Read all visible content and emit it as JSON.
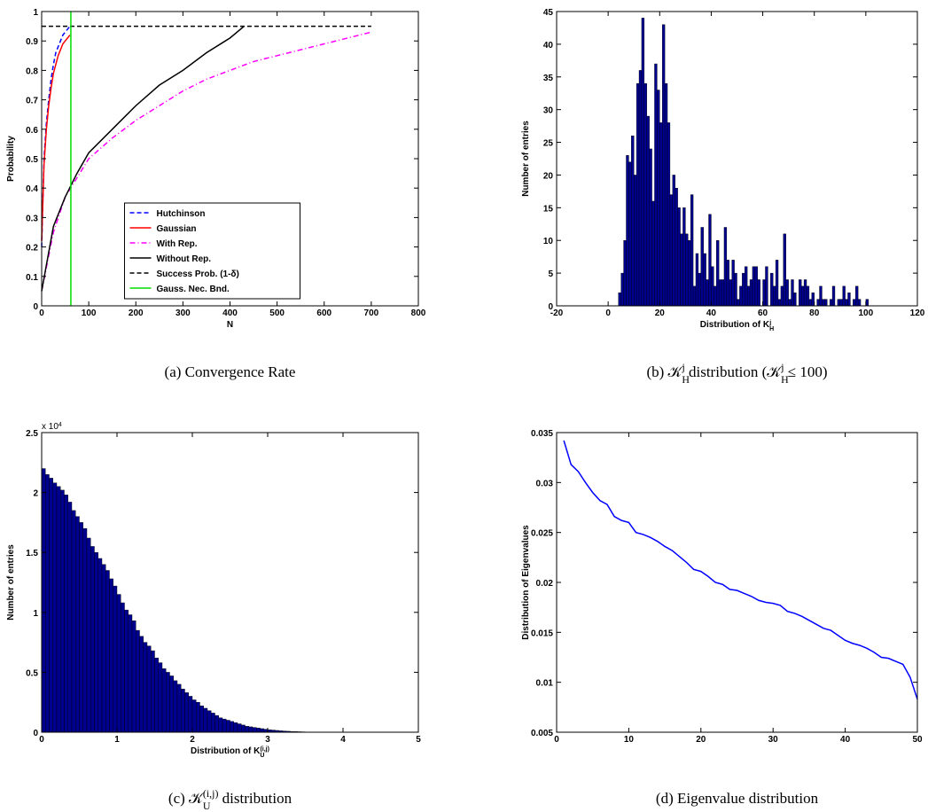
{
  "chart_data": [
    {
      "type": "line",
      "ylabel": [
        {
          "text": "Probability"
        }
      ],
      "xlabel": [
        {
          "text": "N"
        }
      ],
      "caption": [
        {
          "text": "(a)  Convergence Rate"
        }
      ],
      "xlim": [
        0,
        800
      ],
      "xticks": [
        0,
        100,
        200,
        300,
        400,
        500,
        600,
        700,
        800
      ],
      "ylim": [
        0,
        1
      ],
      "yticks": [
        0,
        0.1,
        0.2,
        0.3,
        0.4,
        0.5,
        0.6,
        0.7,
        0.8,
        0.9,
        1
      ],
      "legend": "lower center",
      "series": [
        {
          "name": "Hutchinson",
          "color": "#0000ff",
          "linestyle": "--",
          "x": [
            0,
            5,
            10,
            15,
            20,
            25,
            30,
            35,
            40,
            45,
            50,
            55,
            60
          ],
          "values": [
            0.2,
            0.5,
            0.62,
            0.7,
            0.77,
            0.82,
            0.86,
            0.88,
            0.9,
            0.92,
            0.93,
            0.94,
            0.95
          ]
        },
        {
          "name": "Gaussian",
          "color": "#ff0000",
          "linestyle": "-",
          "x": [
            0,
            5,
            10,
            15,
            20,
            25,
            30,
            35,
            40,
            45,
            50,
            55,
            60
          ],
          "values": [
            0.22,
            0.48,
            0.6,
            0.68,
            0.74,
            0.79,
            0.82,
            0.85,
            0.87,
            0.89,
            0.9,
            0.91,
            0.92
          ]
        },
        {
          "name": "With Rep.",
          "color": "#ff00ff",
          "linestyle": "-.",
          "x": [
            0,
            25,
            50,
            100,
            150,
            200,
            250,
            300,
            350,
            400,
            450,
            500,
            550,
            600,
            650,
            700
          ],
          "values": [
            0.05,
            0.25,
            0.37,
            0.5,
            0.57,
            0.63,
            0.68,
            0.73,
            0.77,
            0.8,
            0.83,
            0.85,
            0.87,
            0.89,
            0.91,
            0.93
          ]
        },
        {
          "name": "Without Rep.",
          "color": "#000000",
          "linestyle": "-",
          "x": [
            0,
            25,
            50,
            75,
            100,
            150,
            200,
            250,
            300,
            350,
            400,
            430
          ],
          "values": [
            0.05,
            0.27,
            0.37,
            0.45,
            0.52,
            0.6,
            0.68,
            0.75,
            0.8,
            0.86,
            0.91,
            0.95
          ]
        },
        {
          "name": "Success Prob. (1-δ)",
          "color": "#000000",
          "linestyle": "--",
          "x": [
            0,
            700
          ],
          "values": [
            0.95,
            0.95
          ]
        },
        {
          "name": "Gauss. Nec. Bnd.",
          "color": "#00dd00",
          "linestyle": "-",
          "x": [
            62,
            62
          ],
          "values": [
            0,
            1
          ]
        }
      ]
    },
    {
      "type": "histogram",
      "ylabel": [
        {
          "text": "Number of entries"
        }
      ],
      "xlabel": [
        {
          "text": "Distribution of K"
        },
        {
          "sub": "H",
          "sup": "j"
        }
      ],
      "caption": [
        {
          "text": "(b)  𝒦"
        },
        {
          "sub": "H",
          "sup": "j"
        },
        {
          "text": " distribution (𝒦"
        },
        {
          "sub": "H",
          "sup": "j"
        },
        {
          "text": " ≤ 100)"
        }
      ],
      "xlim": [
        -20,
        120
      ],
      "xticks": [
        -20,
        0,
        20,
        40,
        60,
        80,
        100,
        120
      ],
      "ylim": [
        0,
        45
      ],
      "yticks": [
        0,
        5,
        10,
        15,
        20,
        25,
        30,
        35,
        40,
        45
      ],
      "color": "#00008f",
      "bins": [
        4,
        5,
        6,
        7,
        8,
        9,
        10,
        11,
        12,
        13,
        14,
        15,
        16,
        17,
        18,
        19,
        20,
        21,
        22,
        23,
        24,
        25,
        26,
        27,
        28,
        29,
        30,
        31,
        32,
        33,
        34,
        35,
        36,
        37,
        38,
        39,
        40,
        41,
        42,
        43,
        44,
        45,
        46,
        47,
        48,
        49,
        50,
        51,
        52,
        53,
        54,
        55,
        56,
        57,
        58,
        59,
        60,
        61,
        62,
        63,
        64,
        65,
        66,
        67,
        68,
        69,
        70,
        71,
        72,
        73,
        74,
        75,
        76,
        77,
        78,
        79,
        80,
        81,
        82,
        83,
        84,
        85,
        86,
        87,
        88,
        89,
        90,
        91,
        92,
        93,
        94,
        95,
        96,
        97,
        98,
        99,
        100,
        101
      ],
      "values": [
        2,
        5,
        10,
        23,
        22,
        26,
        20,
        34,
        36,
        44,
        34,
        29,
        24,
        16,
        37,
        33,
        28,
        43,
        34,
        28,
        17,
        20,
        18,
        15,
        11,
        15,
        11,
        10,
        17,
        3,
        8,
        5,
        12,
        8,
        4,
        14,
        6,
        3,
        10,
        4,
        4,
        12,
        7,
        4,
        7,
        5,
        1,
        3,
        5,
        6,
        3,
        4,
        6,
        6,
        4,
        0,
        4,
        6,
        0,
        5,
        3,
        7,
        1,
        3,
        11,
        4,
        1,
        4,
        2,
        0,
        4,
        3,
        4,
        3,
        1,
        2,
        0,
        1,
        3,
        1,
        1,
        0,
        1,
        3,
        0,
        1,
        1,
        3,
        1,
        2,
        0,
        1,
        3,
        1,
        0,
        0,
        1
      ]
    },
    {
      "type": "histogram",
      "ylabel": [
        {
          "text": "Number of entries"
        }
      ],
      "xlabel": [
        {
          "text": "Distribution of K"
        },
        {
          "sub": "U",
          "sup": "(i,j)"
        }
      ],
      "annotation": [
        {
          "text": "x 10"
        },
        {
          "sup": "4"
        }
      ],
      "caption": [
        {
          "text": "(c)  𝒦"
        },
        {
          "sub": "U",
          "sup": "(i,j)"
        },
        {
          "text": " distribution"
        }
      ],
      "xlim": [
        0,
        5
      ],
      "xticks": [
        0,
        1,
        2,
        3,
        4,
        5
      ],
      "ylim": [
        0,
        2.5
      ],
      "yticks": [
        0,
        0.5,
        1,
        1.5,
        2,
        2.5
      ],
      "color": "#00008f",
      "bins": [
        0,
        0.05,
        0.1,
        0.15,
        0.2,
        0.25,
        0.3,
        0.35,
        0.4,
        0.45,
        0.5,
        0.55,
        0.6,
        0.65,
        0.7,
        0.75,
        0.8,
        0.85,
        0.9,
        0.95,
        1,
        1.05,
        1.1,
        1.15,
        1.2,
        1.25,
        1.3,
        1.35,
        1.4,
        1.45,
        1.5,
        1.55,
        1.6,
        1.65,
        1.7,
        1.75,
        1.8,
        1.85,
        1.9,
        1.95,
        2,
        2.05,
        2.1,
        2.15,
        2.2,
        2.25,
        2.3,
        2.35,
        2.4,
        2.45,
        2.5,
        2.55,
        2.6,
        2.65,
        2.7,
        2.75,
        2.8,
        2.85,
        2.9,
        2.95,
        3,
        3.05,
        3.1,
        3.15,
        3.2,
        3.25,
        3.3,
        3.35,
        3.4,
        3.45,
        3.5,
        3.55,
        3.6,
        3.65,
        3.7,
        3.75,
        3.8,
        3.85,
        3.9,
        3.95,
        4
      ],
      "values": [
        2.2,
        2.15,
        2.12,
        2.08,
        2.05,
        2.02,
        1.98,
        1.92,
        1.85,
        1.8,
        1.75,
        1.7,
        1.62,
        1.55,
        1.5,
        1.45,
        1.4,
        1.35,
        1.28,
        1.22,
        1.15,
        1.08,
        1.02,
        0.98,
        0.93,
        0.85,
        0.8,
        0.75,
        0.72,
        0.68,
        0.62,
        0.58,
        0.53,
        0.5,
        0.47,
        0.43,
        0.4,
        0.36,
        0.33,
        0.3,
        0.27,
        0.25,
        0.22,
        0.2,
        0.18,
        0.16,
        0.14,
        0.12,
        0.11,
        0.1,
        0.09,
        0.08,
        0.07,
        0.06,
        0.05,
        0.045,
        0.04,
        0.035,
        0.03,
        0.025,
        0.02,
        0.018,
        0.015,
        0.012,
        0.01,
        0.008,
        0.006,
        0.005,
        0.004,
        0.003,
        0.002,
        0.002,
        0.001,
        0.001,
        0.001,
        0.0005,
        0.0005,
        0.0003,
        0.0002,
        0.0001
      ]
    },
    {
      "type": "line",
      "ylabel": [
        {
          "text": "Distribution of Eigenvalues"
        }
      ],
      "xlabel": [],
      "caption": [
        {
          "text": "(d)  Eigenvalue distribution"
        }
      ],
      "xlim": [
        0,
        50
      ],
      "xticks": [
        0,
        10,
        20,
        30,
        40,
        50
      ],
      "ylim": [
        0.005,
        0.035
      ],
      "yticks": [
        0.005,
        0.01,
        0.015,
        0.02,
        0.025,
        0.03,
        0.035
      ],
      "color": "#0000ff",
      "x": [
        1,
        2,
        3,
        4,
        5,
        6,
        7,
        8,
        9,
        10,
        11,
        12,
        13,
        14,
        15,
        16,
        17,
        18,
        19,
        20,
        21,
        22,
        23,
        24,
        25,
        26,
        27,
        28,
        29,
        30,
        31,
        32,
        33,
        34,
        35,
        36,
        37,
        38,
        39,
        40,
        41,
        42,
        43,
        44,
        45,
        46,
        47,
        48,
        49,
        50
      ],
      "values": [
        0.0342,
        0.0318,
        0.0311,
        0.03,
        0.029,
        0.0282,
        0.0278,
        0.0266,
        0.0262,
        0.026,
        0.025,
        0.0248,
        0.0245,
        0.0241,
        0.0236,
        0.0232,
        0.0226,
        0.022,
        0.0213,
        0.0211,
        0.0206,
        0.02,
        0.0198,
        0.0193,
        0.0192,
        0.0189,
        0.0186,
        0.0182,
        0.018,
        0.0179,
        0.0177,
        0.0171,
        0.0169,
        0.0166,
        0.0162,
        0.0158,
        0.0154,
        0.0152,
        0.0147,
        0.0142,
        0.0139,
        0.0137,
        0.0134,
        0.013,
        0.0125,
        0.0124,
        0.0121,
        0.0118,
        0.0105,
        0.0083
      ]
    }
  ]
}
